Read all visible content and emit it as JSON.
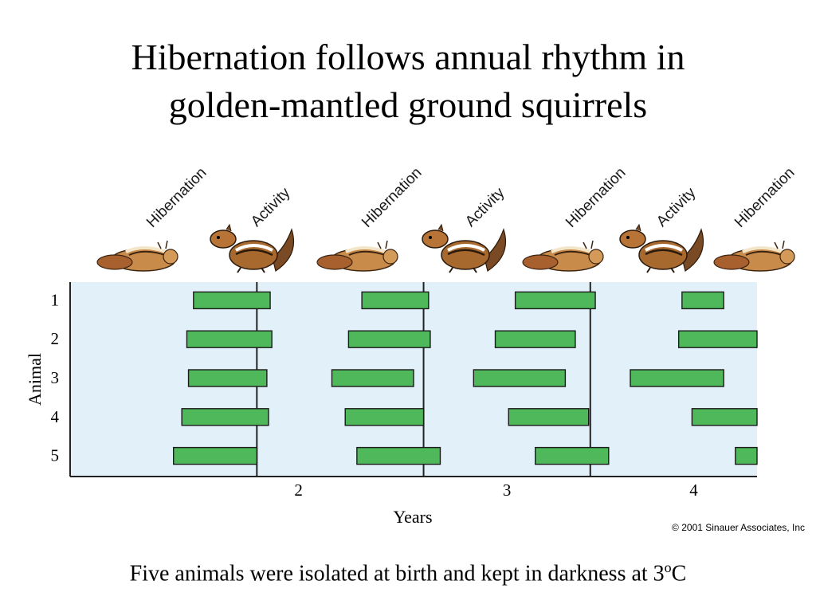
{
  "title_line1": "Hibernation follows annual rhythm in",
  "title_line2": "golden-mantled ground squirrels",
  "phases": [
    "Hibernation",
    "Activity",
    "Hibernation",
    "Activity",
    "Hibernation",
    "Activity",
    "Hibernation"
  ],
  "phase_icons": [
    "curled-squirrel-icon",
    "sitting-squirrel-icon",
    "curled-squirrel-icon",
    "sitting-squirrel-icon",
    "curled-squirrel-icon",
    "sitting-squirrel-icon",
    "curled-squirrel-icon"
  ],
  "caption_text": "Five animals were isolated at birth and kept in darkness at 3",
  "caption_sup": "o",
  "caption_unit": "C",
  "copyright": "© 2001 Sinauer Associates, Inc",
  "colors": {
    "plot_bg": "#e2f0f9",
    "bar_fill": "#4fb85a",
    "bar_stroke": "#1a1a1a",
    "axis": "#222222"
  },
  "chart_data": {
    "type": "bar",
    "orientation": "horizontal-gantt",
    "title": "",
    "xlabel": "Years",
    "ylabel": "Animal",
    "xlim": [
      0.38,
      4.5
    ],
    "x_ticks": [
      2,
      3,
      4
    ],
    "year_boundaries": [
      1.5,
      2.5,
      3.5
    ],
    "categories": [
      "1",
      "2",
      "3",
      "4",
      "5"
    ],
    "series": [
      {
        "values": [
          [
            1.12,
            1.58
          ],
          [
            2.13,
            2.53
          ],
          [
            3.05,
            3.53
          ],
          [
            4.05,
            4.3
          ]
        ]
      },
      {
        "values": [
          [
            1.08,
            1.59
          ],
          [
            2.05,
            2.54
          ],
          [
            2.93,
            3.41
          ],
          [
            4.03,
            4.5
          ]
        ]
      },
      {
        "values": [
          [
            1.09,
            1.56
          ],
          [
            1.95,
            2.44
          ],
          [
            2.8,
            3.35
          ],
          [
            3.74,
            4.3
          ]
        ]
      },
      {
        "values": [
          [
            1.05,
            1.57
          ],
          [
            2.03,
            2.5
          ],
          [
            3.01,
            3.49
          ],
          [
            4.11,
            4.5
          ]
        ]
      },
      {
        "values": [
          [
            1.0,
            1.5
          ],
          [
            2.1,
            2.6
          ],
          [
            3.17,
            3.61
          ],
          [
            4.37,
            4.5
          ]
        ]
      }
    ]
  }
}
